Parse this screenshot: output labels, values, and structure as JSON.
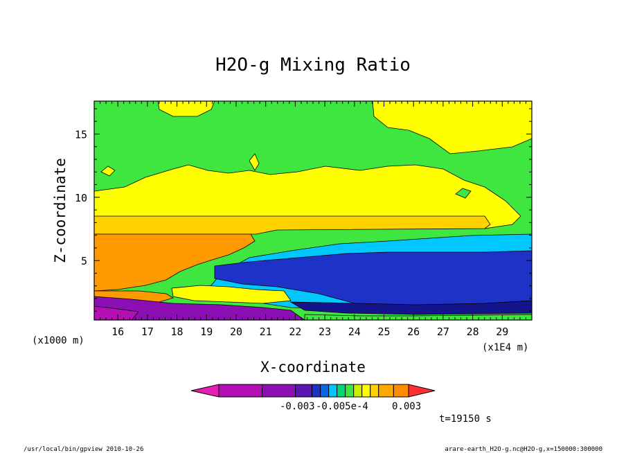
{
  "chart_data": {
    "type": "heatmap",
    "title": "H2O-g Mixing Ratio",
    "xlabel": "X-coordinate",
    "ylabel": "Z-coordinate",
    "x_multiplier": "(x1E4 m)",
    "y_multiplier": "(x1000 m)",
    "xlim": [
      15.2,
      30.0
    ],
    "ylim": [
      0.3,
      17.6
    ],
    "x_ticks": [
      16,
      17,
      18,
      19,
      20,
      21,
      22,
      23,
      24,
      25,
      26,
      27,
      28,
      29
    ],
    "y_ticks": [
      5,
      10,
      15
    ],
    "grid": false,
    "legend": "bottom-center",
    "colorbar": {
      "colors": [
        "#e61eb4",
        "#b40fb4",
        "#8c0fb4",
        "#5a14b4",
        "#1e32c8",
        "#0a64e6",
        "#00c8ff",
        "#00d878",
        "#40e640",
        "#c8f000",
        "#ffff00",
        "#ffd200",
        "#ffaa00",
        "#ff8c00",
        "#ff3030"
      ],
      "labels": [
        "-0.003",
        "-0.005e-4",
        "0.003"
      ]
    },
    "time_label": "t=19150 s",
    "footer_left": "/usr/local/bin/gpview  2010-10-26",
    "footer_right": "arare-earth_H2O-g.nc@H2O-g,x=150000:300000"
  }
}
